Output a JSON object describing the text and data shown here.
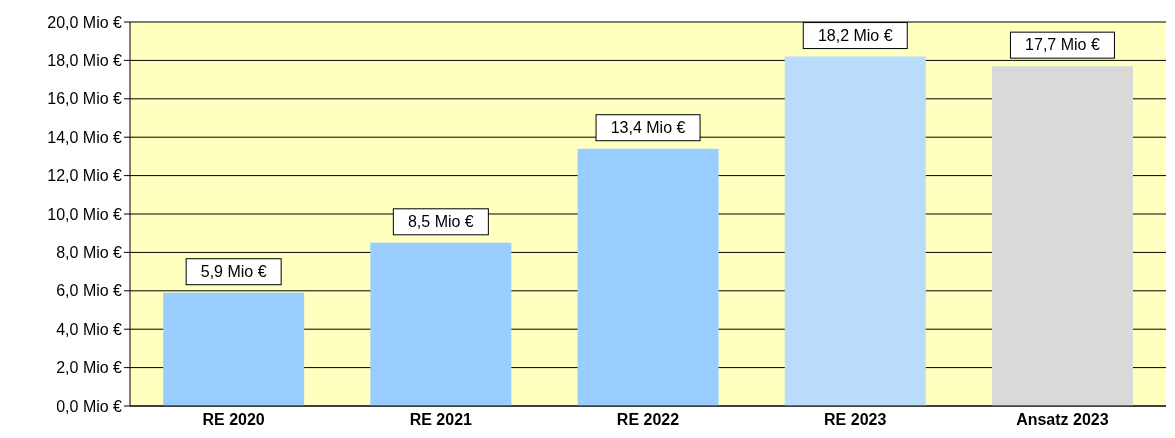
{
  "chart_data": {
    "type": "bar",
    "categories": [
      "RE 2020",
      "RE 2021",
      "RE 2022",
      "RE 2023",
      "Ansatz 2023"
    ],
    "values": [
      5.9,
      8.5,
      13.4,
      18.2,
      17.7
    ],
    "colors": [
      "#99ccff",
      "#99ccff",
      "#99ccff",
      "#b8dcfa",
      "#d9d9d9"
    ],
    "value_labels": [
      "5,9 Mio €",
      "8,5 Mio €",
      "13,4 Mio €",
      "18,2 Mio €",
      "17,7 Mio €"
    ],
    "ylim": [
      0,
      20
    ],
    "yticks": [
      {
        "value": 0,
        "label": "0,0 Mio €"
      },
      {
        "value": 2,
        "label": "2,0 Mio €"
      },
      {
        "value": 4,
        "label": "4,0 Mio €"
      },
      {
        "value": 6,
        "label": "6,0 Mio €"
      },
      {
        "value": 8,
        "label": "8,0 Mio €"
      },
      {
        "value": 10,
        "label": "10,0 Mio €"
      },
      {
        "value": 12,
        "label": "12,0 Mio €"
      },
      {
        "value": 14,
        "label": "14,0 Mio €"
      },
      {
        "value": 16,
        "label": "16,0 Mio €"
      },
      {
        "value": 18,
        "label": "18,0 Mio €"
      },
      {
        "value": 20,
        "label": "20,0 Mio €"
      }
    ],
    "grid": "y"
  }
}
